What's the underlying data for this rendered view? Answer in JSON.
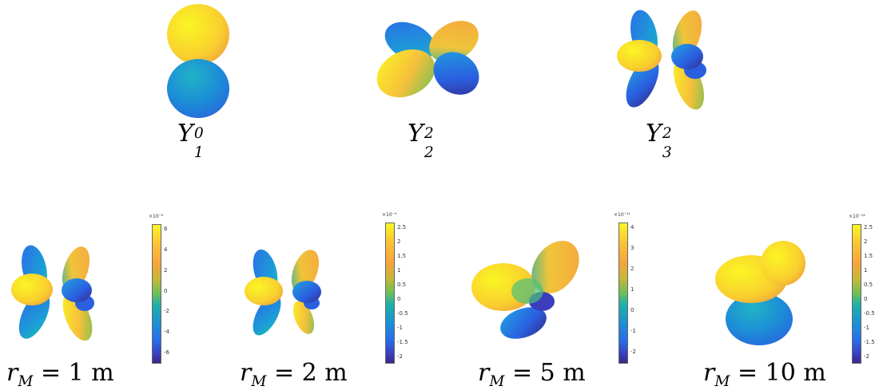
{
  "top_labels": [
    {
      "base": "Y",
      "sub": "1",
      "sup": "0"
    },
    {
      "base": "Y",
      "sub": "2",
      "sup": "2"
    },
    {
      "base": "Y",
      "sub": "3",
      "sup": "2"
    }
  ],
  "bottom_panels": [
    {
      "label_var": "r",
      "label_sub": "M",
      "label_value": "= 1 m",
      "colorbar": {
        "exponent": "×10⁻⁸",
        "ticks": [
          "6",
          "4",
          "2",
          "0",
          "-2",
          "-4",
          "-6"
        ]
      }
    },
    {
      "label_var": "r",
      "label_sub": "M",
      "label_value": "= 2 m",
      "colorbar": {
        "exponent": "×10⁻⁹",
        "ticks": [
          "2.5",
          "2",
          "1.5",
          "1",
          "0.5",
          "0",
          "-0.5",
          "-1",
          "-1.5",
          "-2"
        ]
      }
    },
    {
      "label_var": "r",
      "label_sub": "M",
      "label_value": "= 5 m",
      "colorbar": {
        "exponent": "×10⁻¹¹",
        "ticks": [
          "4",
          "3",
          "2",
          "1",
          "0",
          "-1",
          "-2"
        ]
      }
    },
    {
      "label_var": "r",
      "label_sub": "M",
      "label_value": "= 10 m",
      "colorbar": {
        "exponent": "×10⁻¹²",
        "ticks": [
          "2.5",
          "2",
          "1.5",
          "1",
          "0.5",
          "0",
          "-0.5",
          "-1",
          "-1.5",
          "-2"
        ]
      }
    }
  ],
  "colors": {
    "yellow": "#fbf625",
    "orange": "#f6a53e",
    "teal": "#1fb0a8",
    "blue": "#1c8fd6",
    "dark_blue": "#352a87"
  }
}
